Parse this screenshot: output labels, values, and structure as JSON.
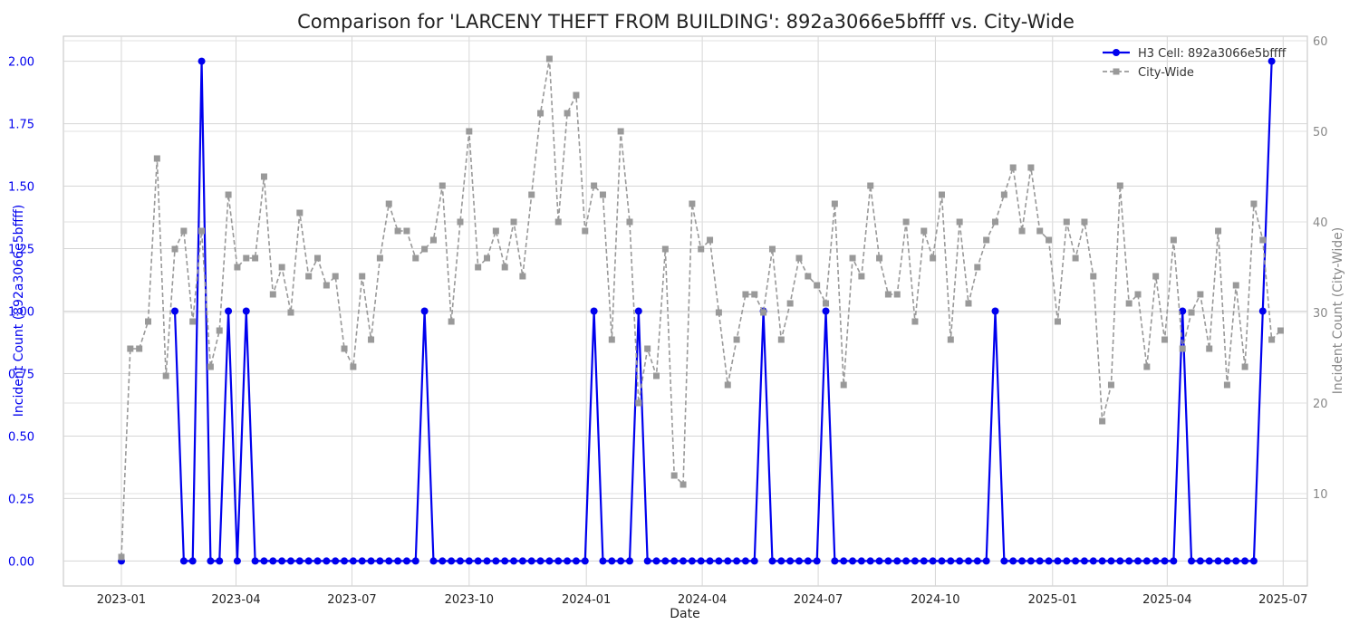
{
  "chart_data": {
    "type": "line",
    "title": "Comparison for 'LARCENY THEFT FROM BUILDING': 892a3066e5bffff vs. City-Wide",
    "xlabel": "Date",
    "ylabel_left": "Incident Count (892a3066e5bffff)",
    "ylabel_right": "Incident Count (City-Wide)",
    "x_tick_labels": [
      "2023-01",
      "2023-04",
      "2023-07",
      "2023-10",
      "2024-01",
      "2024-04",
      "2024-07",
      "2024-10",
      "2025-01",
      "2025-04",
      "2025-07"
    ],
    "x_start": "2023-01-01",
    "x_interval_days": 7,
    "x_range_weeks": [
      -6.5,
      133
    ],
    "y_left_ticks": [
      "0.00",
      "0.25",
      "0.50",
      "0.75",
      "1.00",
      "1.25",
      "1.50",
      "1.75",
      "2.00"
    ],
    "y_left_range": [
      -0.1,
      2.1
    ],
    "y_right_ticks": [
      "10",
      "20",
      "30",
      "40",
      "50",
      "60"
    ],
    "y_right_range": [
      -0.2,
      60.5
    ],
    "grid": true,
    "legend_position": "top-right",
    "series": [
      {
        "name": "H3 Cell: 892a3066e5bffff",
        "axis": "left",
        "color": "#0000ee",
        "style": "solid",
        "marker": "circle",
        "values": [
          0,
          null,
          null,
          null,
          null,
          null,
          1,
          0,
          0,
          2,
          0,
          0,
          1,
          0,
          1,
          0,
          0,
          0,
          0,
          0,
          0,
          0,
          0,
          0,
          0,
          0,
          0,
          0,
          0,
          0,
          0,
          0,
          0,
          0,
          1,
          0,
          0,
          0,
          0,
          0,
          0,
          0,
          0,
          0,
          0,
          0,
          0,
          0,
          0,
          0,
          0,
          0,
          0,
          1,
          0,
          0,
          0,
          0,
          1,
          0,
          0,
          0,
          0,
          0,
          0,
          0,
          0,
          0,
          0,
          0,
          0,
          0,
          1,
          0,
          0,
          0,
          0,
          0,
          0,
          1,
          0,
          0,
          0,
          0,
          0,
          0,
          0,
          0,
          0,
          0,
          0,
          0,
          0,
          0,
          0,
          0,
          0,
          0,
          1,
          0,
          0,
          0,
          0,
          0,
          0,
          0,
          0,
          0,
          0,
          0,
          0,
          0,
          0,
          0,
          0,
          0,
          0,
          0,
          0,
          1,
          0,
          0,
          0,
          0,
          0,
          0,
          0,
          0,
          1,
          2
        ]
      },
      {
        "name": "City-Wide",
        "axis": "right",
        "color": "#999999",
        "style": "dashed",
        "marker": "square",
        "values": [
          3,
          26,
          26,
          29,
          47,
          23,
          37,
          39,
          29,
          39,
          24,
          28,
          43,
          35,
          36,
          36,
          45,
          32,
          35,
          30,
          41,
          34,
          36,
          33,
          34,
          26,
          24,
          34,
          27,
          36,
          42,
          39,
          39,
          36,
          37,
          38,
          44,
          29,
          40,
          50,
          35,
          36,
          39,
          35,
          40,
          34,
          43,
          52,
          58,
          40,
          52,
          54,
          39,
          44,
          43,
          27,
          50,
          40,
          20,
          26,
          23,
          37,
          12,
          11,
          42,
          37,
          38,
          30,
          22,
          27,
          32,
          32,
          30,
          37,
          27,
          31,
          36,
          34,
          33,
          31,
          42,
          22,
          36,
          34,
          44,
          36,
          32,
          32,
          40,
          29,
          39,
          36,
          43,
          27,
          40,
          31,
          35,
          38,
          40,
          43,
          46,
          39,
          46,
          39,
          38,
          29,
          40,
          36,
          40,
          34,
          18,
          22,
          44,
          31,
          32,
          24,
          34,
          27,
          38,
          26,
          30,
          32,
          26,
          39,
          22,
          33,
          24,
          42,
          38,
          27,
          28
        ]
      }
    ]
  }
}
